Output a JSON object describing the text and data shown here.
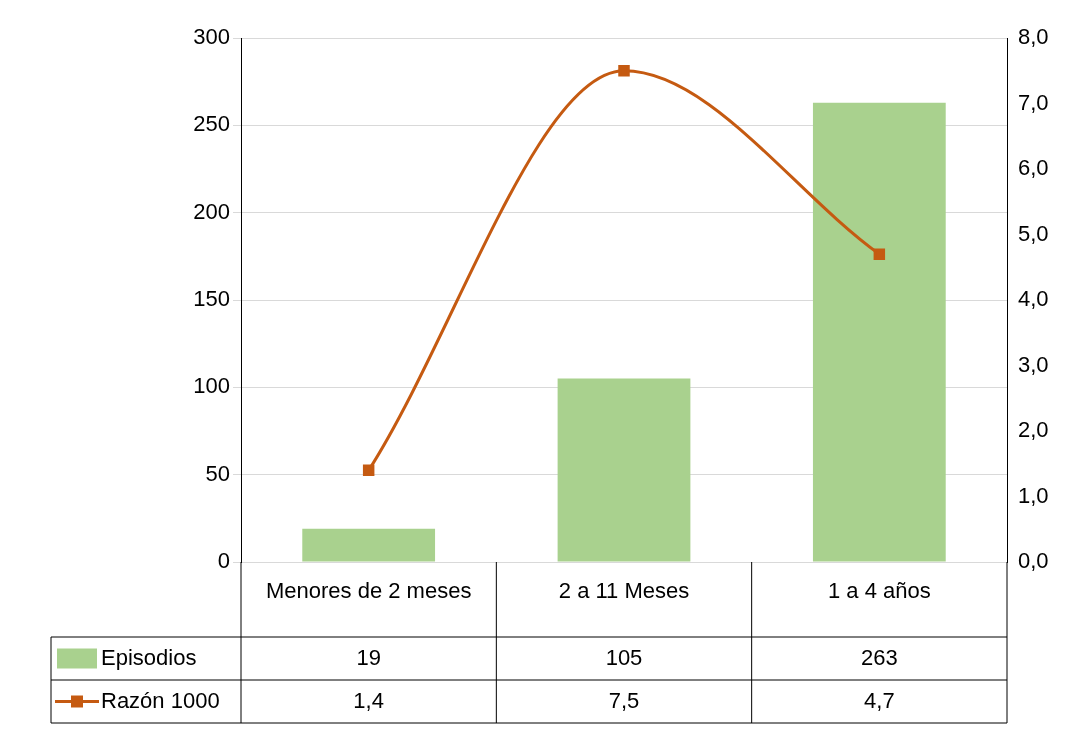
{
  "chart_data": {
    "type": "bar",
    "categories": [
      "Menores de 2 meses",
      "2 a 11 Meses",
      "1 a 4 años"
    ],
    "series": [
      {
        "name": "Episodios",
        "color": "#a9d18e",
        "values": [
          19,
          105,
          263
        ],
        "value_labels": [
          "19",
          "105",
          "263"
        ]
      },
      {
        "name": "Razón 1000",
        "type": "line",
        "axis": "y2",
        "color": "#c55a11",
        "marker": "square",
        "values": [
          1.4,
          7.5,
          4.7
        ],
        "value_labels": [
          "1,4",
          "7,5",
          "4,7"
        ]
      }
    ],
    "ylim": [
      0,
      300
    ],
    "yticks": [
      0,
      50,
      100,
      150,
      200,
      250,
      300
    ],
    "y2lim": [
      0,
      8
    ],
    "y2ticks": [
      {
        "value": 0,
        "label": "0,0"
      },
      {
        "value": 1,
        "label": "1,0"
      },
      {
        "value": 2,
        "label": "2,0"
      },
      {
        "value": 3,
        "label": "3,0"
      },
      {
        "value": 4,
        "label": "4,0"
      },
      {
        "value": 5,
        "label": "5,0"
      },
      {
        "value": 6,
        "label": "6,0"
      },
      {
        "value": 7,
        "label": "7,0"
      },
      {
        "value": 8,
        "label": "8,0"
      }
    ],
    "grid": "y",
    "legend": "bottom"
  }
}
